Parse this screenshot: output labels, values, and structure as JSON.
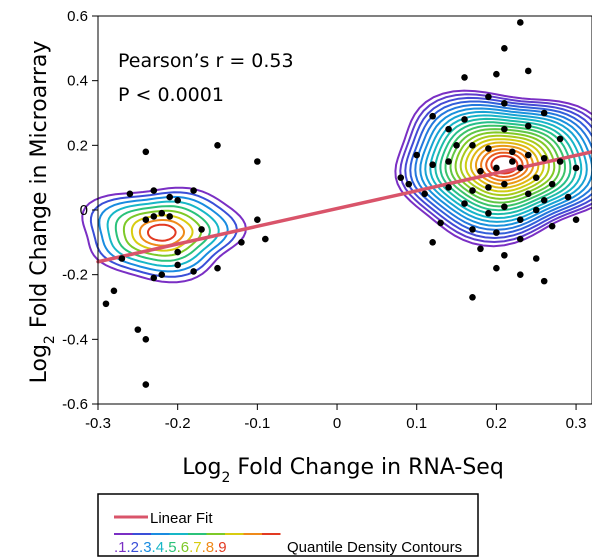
{
  "chart_data": {
    "type": "scatter",
    "xlabel": {
      "prefix": "Log",
      "sub": "2",
      "rest": " Fold Change in RNA-Seq"
    },
    "ylabel": {
      "prefix": "Log",
      "sub": "2",
      "rest": " Fold Change in Microarray"
    },
    "xlim": [
      -0.3,
      0.32
    ],
    "ylim": [
      -0.6,
      0.6
    ],
    "x_ticks": [
      "-0.3",
      "-0.2",
      "-0.1",
      "0",
      "0.1",
      "0.2",
      "0.3"
    ],
    "x_tick_values": [
      -0.3,
      -0.2,
      -0.1,
      0,
      0.1,
      0.2,
      0.3
    ],
    "y_ticks": [
      "0.6",
      "0.4",
      "0.2",
      "0",
      "-0.2",
      "-0.4",
      "-0.6"
    ],
    "y_tick_values": [
      0.6,
      0.4,
      0.2,
      0,
      -0.2,
      -0.4,
      -0.6
    ],
    "grid": false,
    "annotations": [
      "Pearson’s r = 0.53",
      "P < 0.0001"
    ],
    "linear_fit": {
      "x": [
        -0.3,
        0.32
      ],
      "y": [
        -0.16,
        0.18
      ],
      "color": "#d9546a"
    },
    "density_clusters": [
      {
        "cx": -0.22,
        "cy": -0.07,
        "rx": 0.1,
        "ry": 0.26,
        "levels": 9
      },
      {
        "cx": 0.21,
        "cy": 0.14,
        "rx": 0.14,
        "ry": 0.42,
        "levels": 20
      }
    ],
    "contour_colors": [
      "#7a2fc4",
      "#3a4fd8",
      "#1a8ce0",
      "#17b7c7",
      "#2bc27a",
      "#7dc928",
      "#d8cc10",
      "#ef8a1a",
      "#e23a22"
    ],
    "points": [
      [
        -0.28,
        -0.25
      ],
      [
        -0.29,
        -0.29
      ],
      [
        -0.25,
        -0.37
      ],
      [
        -0.24,
        -0.4
      ],
      [
        -0.24,
        -0.54
      ],
      [
        -0.24,
        0.18
      ],
      [
        -0.2,
        -0.13
      ],
      [
        -0.2,
        -0.17
      ],
      [
        -0.22,
        -0.2
      ],
      [
        -0.23,
        -0.21
      ],
      [
        -0.24,
        -0.03
      ],
      [
        -0.23,
        -0.02
      ],
      [
        -0.22,
        -0.01
      ],
      [
        -0.21,
        -0.02
      ],
      [
        -0.21,
        0.04
      ],
      [
        -0.2,
        0.03
      ],
      [
        -0.23,
        0.06
      ],
      [
        -0.18,
        0.06
      ],
      [
        -0.18,
        -0.19
      ],
      [
        -0.17,
        -0.06
      ],
      [
        -0.15,
        -0.18
      ],
      [
        -0.12,
        -0.1
      ],
      [
        -0.1,
        -0.03
      ],
      [
        -0.1,
        0.15
      ],
      [
        -0.09,
        -0.09
      ],
      [
        -0.15,
        0.2
      ],
      [
        -0.27,
        -0.15
      ],
      [
        -0.26,
        0.05
      ],
      [
        0.23,
        0.58
      ],
      [
        0.21,
        0.5
      ],
      [
        0.16,
        0.41
      ],
      [
        0.2,
        0.42
      ],
      [
        0.24,
        0.43
      ],
      [
        0.19,
        0.35
      ],
      [
        0.21,
        0.33
      ],
      [
        0.12,
        0.29
      ],
      [
        0.16,
        0.28
      ],
      [
        0.21,
        0.25
      ],
      [
        0.24,
        0.26
      ],
      [
        0.28,
        0.22
      ],
      [
        0.15,
        0.2
      ],
      [
        0.17,
        0.2
      ],
      [
        0.19,
        0.19
      ],
      [
        0.22,
        0.18
      ],
      [
        0.24,
        0.17
      ],
      [
        0.26,
        0.16
      ],
      [
        0.28,
        0.15
      ],
      [
        0.3,
        0.13
      ],
      [
        0.1,
        0.17
      ],
      [
        0.12,
        0.14
      ],
      [
        0.14,
        0.15
      ],
      [
        0.18,
        0.12
      ],
      [
        0.2,
        0.13
      ],
      [
        0.22,
        0.15
      ],
      [
        0.23,
        0.13
      ],
      [
        0.25,
        0.1
      ],
      [
        0.27,
        0.08
      ],
      [
        0.09,
        0.08
      ],
      [
        0.11,
        0.05
      ],
      [
        0.14,
        0.07
      ],
      [
        0.17,
        0.06
      ],
      [
        0.19,
        0.07
      ],
      [
        0.21,
        0.08
      ],
      [
        0.24,
        0.05
      ],
      [
        0.26,
        0.03
      ],
      [
        0.29,
        0.04
      ],
      [
        0.16,
        0.02
      ],
      [
        0.19,
        -0.01
      ],
      [
        0.21,
        0.01
      ],
      [
        0.23,
        -0.03
      ],
      [
        0.25,
        0.0
      ],
      [
        0.13,
        -0.04
      ],
      [
        0.17,
        -0.06
      ],
      [
        0.2,
        -0.07
      ],
      [
        0.23,
        -0.09
      ],
      [
        0.27,
        -0.05
      ],
      [
        0.3,
        -0.03
      ],
      [
        0.18,
        -0.12
      ],
      [
        0.21,
        -0.14
      ],
      [
        0.25,
        -0.15
      ],
      [
        0.2,
        -0.18
      ],
      [
        0.23,
        -0.2
      ],
      [
        0.17,
        -0.27
      ],
      [
        0.26,
        -0.22
      ],
      [
        0.12,
        -0.1
      ],
      [
        0.08,
        0.1
      ],
      [
        0.14,
        0.25
      ],
      [
        0.26,
        0.3
      ]
    ],
    "legend": {
      "line_label": "Linear Fit",
      "contour_label": "Quantile Density Contours",
      "quantile_labels": [
        ".1",
        ".2",
        ".3",
        ".4",
        ".5",
        ".6",
        ".7",
        ".8",
        ".9"
      ]
    }
  }
}
